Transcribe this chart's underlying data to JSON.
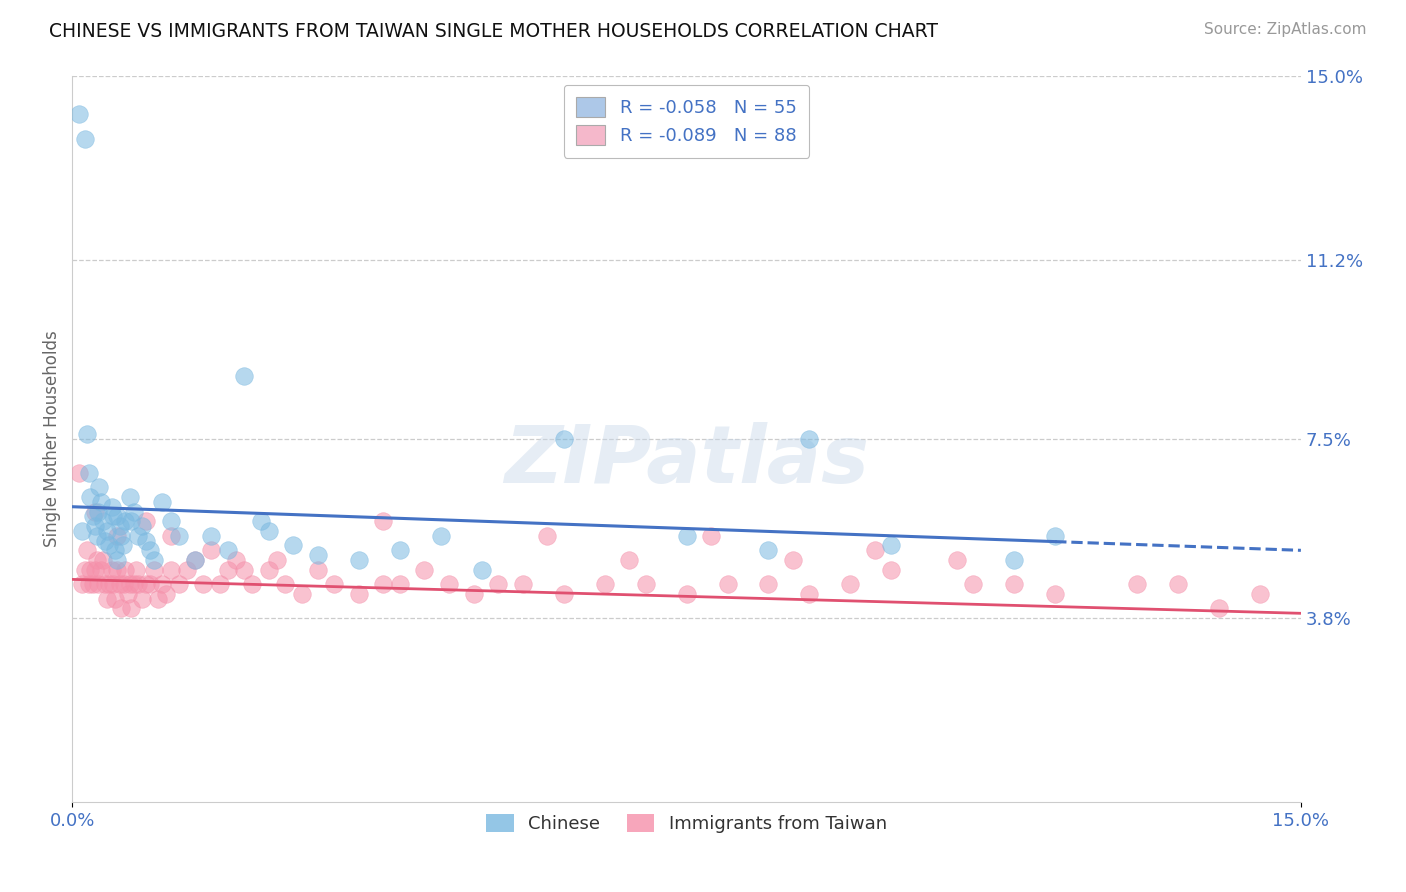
{
  "title": "CHINESE VS IMMIGRANTS FROM TAIWAN SINGLE MOTHER HOUSEHOLDS CORRELATION CHART",
  "source": "Source: ZipAtlas.com",
  "xmin": 0.0,
  "xmax": 15.0,
  "ymin": 0.0,
  "ymax": 15.0,
  "ylabel_right_labels": [
    15.0,
    11.2,
    7.5,
    3.8
  ],
  "legend_entries": [
    {
      "label": "R = -0.058   N = 55",
      "color": "#adc8e8"
    },
    {
      "label": "R = -0.089   N = 88",
      "color": "#f5b8cb"
    }
  ],
  "legend_labels_bottom": [
    "Chinese",
    "Immigrants from Taiwan"
  ],
  "chinese_color": "#7ab8e0",
  "taiwan_color": "#f590aa",
  "trend_chinese_color": "#4472c4",
  "trend_taiwan_color": "#e05070",
  "R_chinese": -0.058,
  "N_chinese": 55,
  "R_taiwan": -0.089,
  "N_taiwan": 88,
  "watermark": "ZIPatlas",
  "background_color": "#ffffff",
  "chinese_trend_start_x": 0.0,
  "chinese_trend_end_solid_x": 12.0,
  "chinese_trend_end_x": 15.0,
  "chinese_trend_start_y": 6.1,
  "chinese_trend_end_y": 5.2,
  "taiwan_trend_start_y": 4.6,
  "taiwan_trend_end_y": 3.9,
  "chinese_scatter_x": [
    0.08,
    0.15,
    0.18,
    0.2,
    0.22,
    0.25,
    0.28,
    0.3,
    0.32,
    0.35,
    0.38,
    0.4,
    0.42,
    0.45,
    0.48,
    0.5,
    0.52,
    0.55,
    0.58,
    0.6,
    0.65,
    0.7,
    0.75,
    0.8,
    0.85,
    0.9,
    0.95,
    1.0,
    1.1,
    1.2,
    1.3,
    1.5,
    1.7,
    1.9,
    2.1,
    2.4,
    2.7,
    3.0,
    3.5,
    4.0,
    4.5,
    5.0,
    6.0,
    7.5,
    8.5,
    9.0,
    10.0,
    11.5,
    12.0,
    0.12,
    0.33,
    0.55,
    0.62,
    0.72,
    2.3
  ],
  "chinese_scatter_y": [
    14.2,
    13.7,
    7.6,
    6.8,
    6.3,
    5.9,
    5.7,
    5.5,
    6.0,
    6.2,
    5.8,
    5.4,
    5.6,
    5.3,
    6.1,
    5.9,
    5.2,
    5.0,
    5.7,
    5.5,
    5.8,
    6.3,
    6.0,
    5.5,
    5.7,
    5.4,
    5.2,
    5.0,
    6.2,
    5.8,
    5.5,
    5.0,
    5.5,
    5.2,
    8.8,
    5.6,
    5.3,
    5.1,
    5.0,
    5.2,
    5.5,
    4.8,
    7.5,
    5.5,
    5.2,
    7.5,
    5.3,
    5.0,
    5.5,
    5.6,
    6.5,
    5.9,
    5.3,
    5.8,
    5.8
  ],
  "taiwan_scatter_x": [
    0.08,
    0.12,
    0.15,
    0.18,
    0.2,
    0.22,
    0.25,
    0.28,
    0.3,
    0.32,
    0.35,
    0.38,
    0.4,
    0.42,
    0.45,
    0.48,
    0.5,
    0.52,
    0.55,
    0.58,
    0.6,
    0.63,
    0.65,
    0.68,
    0.7,
    0.72,
    0.75,
    0.78,
    0.8,
    0.85,
    0.9,
    0.95,
    1.0,
    1.05,
    1.1,
    1.15,
    1.2,
    1.3,
    1.4,
    1.5,
    1.6,
    1.7,
    1.8,
    1.9,
    2.0,
    2.1,
    2.2,
    2.4,
    2.6,
    2.8,
    3.0,
    3.2,
    3.5,
    3.8,
    4.0,
    4.3,
    4.6,
    4.9,
    5.2,
    5.5,
    6.0,
    6.5,
    7.0,
    7.5,
    8.0,
    8.5,
    9.0,
    9.5,
    10.0,
    11.0,
    12.0,
    13.0,
    13.5,
    14.0,
    14.5,
    0.28,
    0.55,
    0.9,
    1.2,
    2.5,
    3.8,
    5.8,
    6.8,
    7.8,
    8.8,
    9.8,
    10.8,
    11.5
  ],
  "taiwan_scatter_y": [
    6.8,
    4.5,
    4.8,
    5.2,
    4.5,
    4.8,
    4.5,
    4.8,
    5.0,
    4.5,
    4.8,
    5.0,
    4.5,
    4.2,
    4.5,
    4.8,
    4.5,
    4.2,
    4.8,
    4.5,
    4.0,
    4.5,
    4.8,
    4.3,
    4.5,
    4.0,
    4.5,
    4.8,
    4.5,
    4.2,
    4.5,
    4.5,
    4.8,
    4.2,
    4.5,
    4.3,
    4.8,
    4.5,
    4.8,
    5.0,
    4.5,
    5.2,
    4.5,
    4.8,
    5.0,
    4.8,
    4.5,
    4.8,
    4.5,
    4.3,
    4.8,
    4.5,
    4.3,
    4.5,
    4.5,
    4.8,
    4.5,
    4.3,
    4.5,
    4.5,
    4.3,
    4.5,
    4.5,
    4.3,
    4.5,
    4.5,
    4.3,
    4.5,
    4.8,
    4.5,
    4.3,
    4.5,
    4.5,
    4.0,
    4.3,
    6.0,
    5.5,
    5.8,
    5.5,
    5.0,
    5.8,
    5.5,
    5.0,
    5.5,
    5.0,
    5.2,
    5.0,
    4.5
  ]
}
